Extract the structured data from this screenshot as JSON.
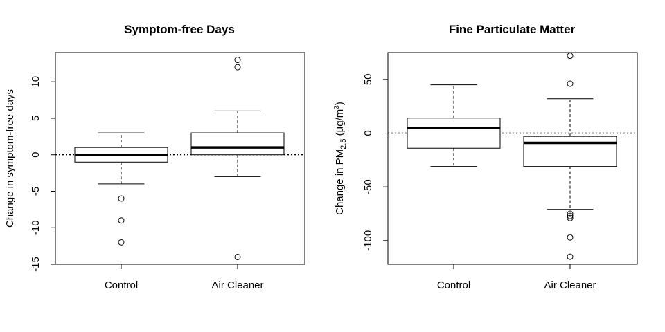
{
  "chart_data": [
    {
      "type": "boxplot",
      "title": "Symptom-free Days",
      "ylabel": "Change in symptom-free days",
      "xlabel": "",
      "categories": [
        "Control",
        "Air Cleaner"
      ],
      "ylim": [
        -15,
        14
      ],
      "yticks": [
        -15,
        -10,
        -5,
        0,
        5,
        10
      ],
      "reference_line": 0,
      "boxes": [
        {
          "name": "Control",
          "whisker_low": -4,
          "q1": -1,
          "median": 0,
          "q3": 1,
          "whisker_high": 3,
          "outliers": [
            -6,
            -9,
            -12
          ]
        },
        {
          "name": "Air Cleaner",
          "whisker_low": -3,
          "q1": 0,
          "median": 1,
          "q3": 3,
          "whisker_high": 6,
          "outliers": [
            13,
            12,
            -14
          ]
        }
      ]
    },
    {
      "type": "boxplot",
      "title": "Fine Particulate Matter",
      "ylabel": {
        "prefix": "Change in PM",
        "sub": "2.5",
        "mid": " (µg/m",
        "sup": "3",
        "suffix": ")"
      },
      "xlabel": "",
      "categories": [
        "Control",
        "Air Cleaner"
      ],
      "ylim": [
        -122,
        75
      ],
      "yticks": [
        -100,
        -50,
        0,
        50
      ],
      "reference_line": 0,
      "boxes": [
        {
          "name": "Control",
          "whisker_low": -31,
          "q1": -14,
          "median": 5,
          "q3": 14,
          "whisker_high": 45,
          "outliers": []
        },
        {
          "name": "Air Cleaner",
          "whisker_low": -71,
          "q1": -31,
          "median": -9,
          "q3": -3,
          "whisker_high": 32,
          "outliers": [
            72,
            46,
            -75,
            -77,
            -79,
            -97,
            -115
          ]
        }
      ]
    }
  ]
}
